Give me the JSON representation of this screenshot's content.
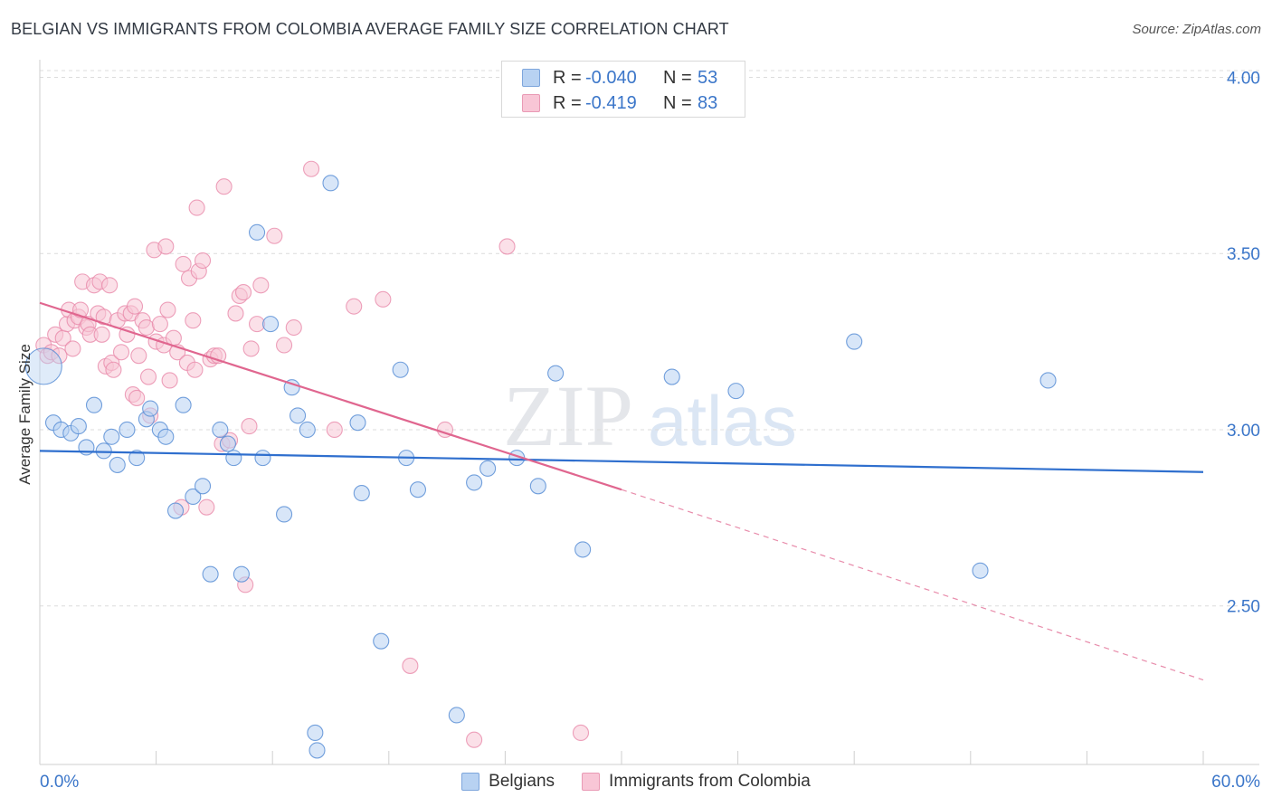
{
  "title": "BELGIAN VS IMMIGRANTS FROM COLOMBIA AVERAGE FAMILY SIZE CORRELATION CHART",
  "source": "Source: ZipAtlas.com",
  "watermark": {
    "zip": "ZIP",
    "atlas": "atlas"
  },
  "stats": {
    "row1": {
      "r_label": "R =",
      "r_value": "-0.040",
      "n_label": "N =",
      "n_value": "53"
    },
    "row2": {
      "r_label": "R =",
      "r_value": "-0.419",
      "n_label": "N =",
      "n_value": "83"
    }
  },
  "legend": {
    "belgians": "Belgians",
    "colombia": "Immigrants from Colombia"
  },
  "colors": {
    "blue": "#5b8fd6",
    "blue_fill": "#b8d2f2",
    "blue_line": "#2f6fce",
    "pink": "#e88aaa",
    "pink_fill": "#f8c6d6",
    "pink_line": "#e0668f",
    "axis_text": "#3b76c9"
  },
  "chart_data": {
    "type": "scatter",
    "title": "BELGIAN VS IMMIGRANTS FROM COLOMBIA AVERAGE FAMILY SIZE CORRELATION CHART",
    "xlabel": "",
    "ylabel": "Average Family Size",
    "xlim": [
      0,
      60
    ],
    "ylim": [
      2.05,
      4.05
    ],
    "x_tick_labels": [
      "0.0%",
      "60.0%"
    ],
    "y_ticks": [
      2.5,
      3.0,
      3.5,
      4.0
    ],
    "y_tick_labels": [
      "2.50",
      "3.00",
      "3.50",
      "4.00"
    ],
    "series": [
      {
        "name": "Belgians",
        "r": -0.04,
        "n": 53,
        "trend": {
          "x0": 0,
          "y0": 2.94,
          "x1": 60,
          "y1": 2.88
        },
        "points": [
          [
            0.2,
            3.18
          ],
          [
            0.7,
            3.02
          ],
          [
            1.1,
            3.0
          ],
          [
            1.6,
            2.99
          ],
          [
            2.0,
            3.01
          ],
          [
            2.4,
            2.95
          ],
          [
            2.8,
            3.07
          ],
          [
            3.3,
            2.94
          ],
          [
            3.7,
            2.98
          ],
          [
            4.0,
            2.9
          ],
          [
            4.5,
            3.0
          ],
          [
            5.0,
            2.92
          ],
          [
            5.5,
            3.03
          ],
          [
            5.7,
            3.06
          ],
          [
            6.2,
            3.0
          ],
          [
            6.5,
            2.98
          ],
          [
            7.0,
            2.77
          ],
          [
            7.4,
            3.07
          ],
          [
            7.9,
            2.81
          ],
          [
            8.4,
            2.84
          ],
          [
            8.8,
            2.59
          ],
          [
            9.3,
            3.0
          ],
          [
            9.7,
            2.96
          ],
          [
            10.0,
            2.92
          ],
          [
            10.4,
            2.59
          ],
          [
            11.2,
            3.56
          ],
          [
            11.5,
            2.92
          ],
          [
            11.9,
            3.3
          ],
          [
            12.6,
            2.76
          ],
          [
            13.0,
            3.12
          ],
          [
            13.3,
            3.04
          ],
          [
            13.8,
            3.0
          ],
          [
            14.2,
            2.14
          ],
          [
            14.3,
            2.09
          ],
          [
            15.0,
            3.7
          ],
          [
            16.4,
            3.02
          ],
          [
            16.6,
            2.82
          ],
          [
            17.6,
            2.4
          ],
          [
            18.6,
            3.17
          ],
          [
            18.9,
            2.92
          ],
          [
            19.5,
            2.83
          ],
          [
            21.5,
            2.19
          ],
          [
            22.4,
            2.85
          ],
          [
            23.1,
            2.89
          ],
          [
            24.6,
            2.92
          ],
          [
            25.7,
            2.84
          ],
          [
            26.6,
            3.16
          ],
          [
            28.0,
            2.66
          ],
          [
            32.6,
            3.15
          ],
          [
            35.9,
            3.11
          ],
          [
            42.0,
            3.25
          ],
          [
            48.5,
            2.6
          ],
          [
            52.0,
            3.14
          ]
        ]
      },
      {
        "name": "Immigrants from Colombia",
        "r": -0.419,
        "n": 83,
        "trend": {
          "x0": 0,
          "y0": 3.36,
          "x1": 30,
          "y1": 2.83,
          "dash_x1": 60,
          "dash_y1": 2.29
        },
        "points": [
          [
            0.2,
            3.24
          ],
          [
            0.4,
            3.21
          ],
          [
            0.6,
            3.22
          ],
          [
            0.8,
            3.27
          ],
          [
            1.0,
            3.21
          ],
          [
            1.2,
            3.26
          ],
          [
            1.4,
            3.3
          ],
          [
            1.5,
            3.34
          ],
          [
            1.7,
            3.23
          ],
          [
            1.8,
            3.31
          ],
          [
            2.0,
            3.32
          ],
          [
            2.1,
            3.34
          ],
          [
            2.2,
            3.42
          ],
          [
            2.4,
            3.29
          ],
          [
            2.5,
            3.3
          ],
          [
            2.6,
            3.27
          ],
          [
            2.8,
            3.41
          ],
          [
            3.0,
            3.33
          ],
          [
            3.1,
            3.42
          ],
          [
            3.2,
            3.27
          ],
          [
            3.3,
            3.32
          ],
          [
            3.4,
            3.18
          ],
          [
            3.6,
            3.41
          ],
          [
            3.7,
            3.19
          ],
          [
            3.8,
            3.17
          ],
          [
            4.0,
            3.31
          ],
          [
            4.2,
            3.22
          ],
          [
            4.4,
            3.33
          ],
          [
            4.5,
            3.27
          ],
          [
            4.7,
            3.33
          ],
          [
            4.8,
            3.1
          ],
          [
            4.9,
            3.35
          ],
          [
            5.0,
            3.09
          ],
          [
            5.1,
            3.21
          ],
          [
            5.3,
            3.31
          ],
          [
            5.5,
            3.29
          ],
          [
            5.6,
            3.15
          ],
          [
            5.7,
            3.04
          ],
          [
            5.9,
            3.51
          ],
          [
            6.0,
            3.25
          ],
          [
            6.2,
            3.3
          ],
          [
            6.4,
            3.24
          ],
          [
            6.5,
            3.52
          ],
          [
            6.6,
            3.34
          ],
          [
            6.7,
            3.14
          ],
          [
            6.9,
            3.26
          ],
          [
            7.1,
            3.22
          ],
          [
            7.3,
            2.78
          ],
          [
            7.4,
            3.47
          ],
          [
            7.6,
            3.19
          ],
          [
            7.7,
            3.43
          ],
          [
            7.9,
            3.31
          ],
          [
            8.0,
            3.17
          ],
          [
            8.1,
            3.63
          ],
          [
            8.2,
            3.45
          ],
          [
            8.4,
            3.48
          ],
          [
            8.6,
            2.78
          ],
          [
            8.8,
            3.2
          ],
          [
            9.0,
            3.21
          ],
          [
            9.2,
            3.21
          ],
          [
            9.4,
            2.96
          ],
          [
            9.5,
            3.69
          ],
          [
            9.8,
            2.97
          ],
          [
            10.1,
            3.33
          ],
          [
            10.3,
            3.38
          ],
          [
            10.5,
            3.39
          ],
          [
            10.6,
            2.56
          ],
          [
            10.8,
            3.01
          ],
          [
            10.9,
            3.23
          ],
          [
            11.2,
            3.3
          ],
          [
            11.4,
            3.41
          ],
          [
            12.1,
            3.55
          ],
          [
            12.6,
            3.24
          ],
          [
            13.1,
            3.29
          ],
          [
            14.0,
            3.74
          ],
          [
            15.2,
            3.0
          ],
          [
            16.2,
            3.35
          ],
          [
            17.7,
            3.37
          ],
          [
            19.1,
            2.33
          ],
          [
            20.9,
            3.0
          ],
          [
            22.4,
            2.12
          ],
          [
            24.1,
            3.52
          ],
          [
            27.9,
            2.14
          ]
        ]
      }
    ]
  }
}
